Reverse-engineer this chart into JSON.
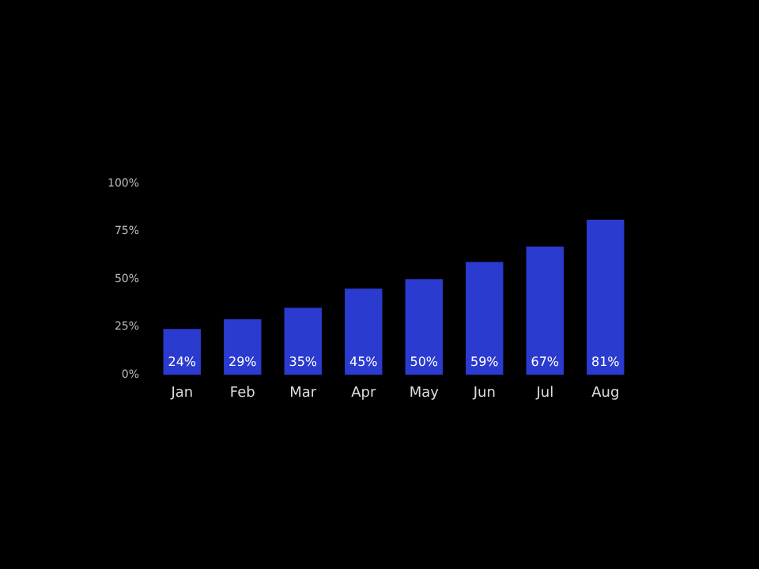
{
  "chart_data": {
    "type": "bar",
    "categories": [
      "Jan",
      "Feb",
      "Mar",
      "Apr",
      "May",
      "Jun",
      "Jul",
      "Aug"
    ],
    "values": [
      24,
      29,
      35,
      45,
      50,
      59,
      67,
      81
    ],
    "value_labels": [
      "24%",
      "29%",
      "35%",
      "45%",
      "50%",
      "59%",
      "67%",
      "81%"
    ],
    "color": "#2b3bcf",
    "ylim": [
      0,
      100
    ],
    "yticks": [
      {
        "value": 0,
        "label": "0%"
      },
      {
        "value": 25,
        "label": "25%"
      },
      {
        "value": 50,
        "label": "50%"
      },
      {
        "value": 75,
        "label": "75%"
      },
      {
        "value": 100,
        "label": "100%"
      }
    ],
    "grid": false,
    "legend": false
  }
}
